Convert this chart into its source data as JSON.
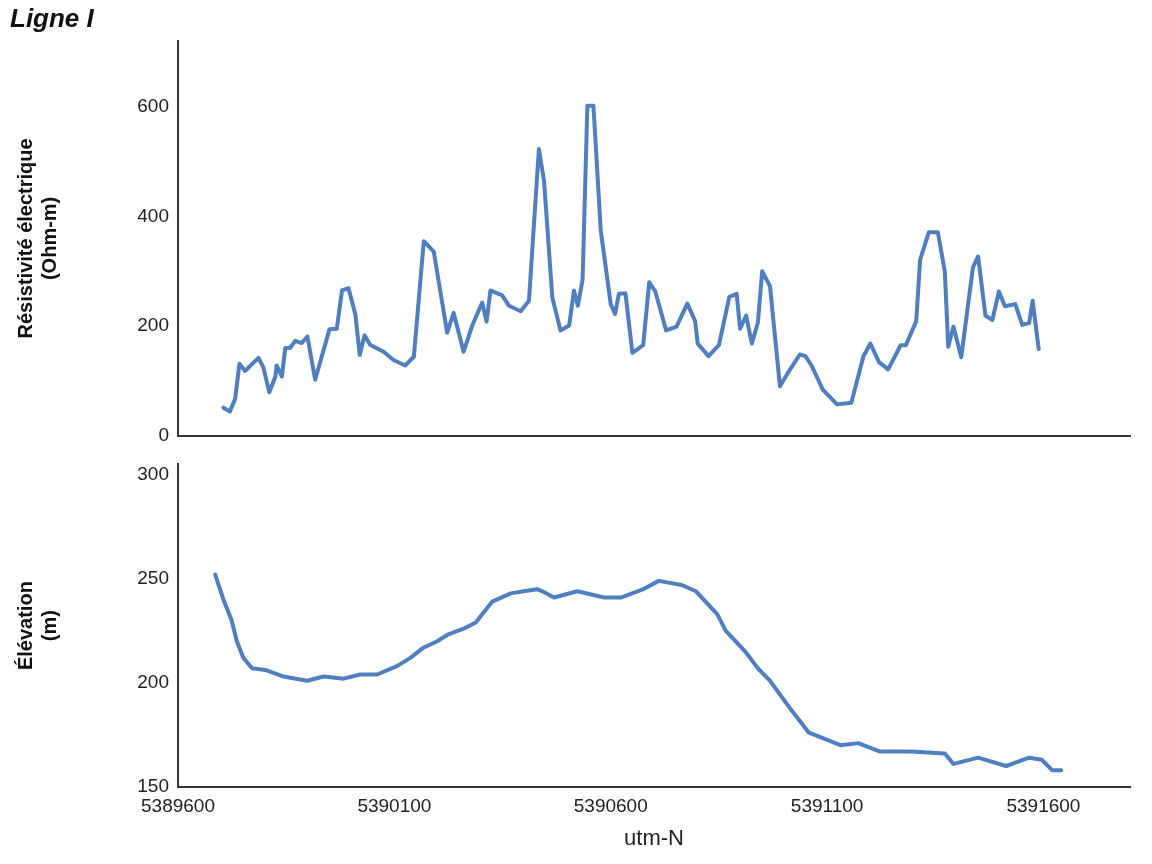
{
  "chart_data": [
    {
      "type": "line",
      "title": "Ligne I",
      "ylabel": "Résistivité électrique (Ohm-m)",
      "xlim": [
        5389600,
        5391800
      ],
      "xticks": [
        5389600,
        5390100,
        5390600,
        5391100,
        5391600
      ],
      "ylim": [
        0,
        720
      ],
      "yticks": [
        0,
        200,
        400,
        600
      ],
      "tick_labels": "y",
      "grid": false,
      "legend": false,
      "marker": "none",
      "line_style": "solid",
      "series": [
        {
          "color": "#4f7fbf",
          "x": [
            5389705,
            5389720,
            5389732,
            5389742,
            5389755,
            5389786,
            5389797,
            5389811,
            5389825,
            5389828,
            5389840,
            5389848,
            5389859,
            5389871,
            5389886,
            5389899,
            5389917,
            5389950,
            5389967,
            5389979,
            5389994,
            5390010,
            5390020,
            5390031,
            5390044,
            5390075,
            5390098,
            5390125,
            5390145,
            5390168,
            5390191,
            5390222,
            5390237,
            5390260,
            5390280,
            5390303,
            5390313,
            5390322,
            5390349,
            5390365,
            5390392,
            5390411,
            5390434,
            5390446,
            5390465,
            5390484,
            5390504,
            5390515,
            5390524,
            5390535,
            5390546,
            5390560,
            5390577,
            5390600,
            5390610,
            5390619,
            5390634,
            5390650,
            5390675,
            5390689,
            5390703,
            5390728,
            5390752,
            5390777,
            5390795,
            5390801,
            5390826,
            5390850,
            5390874,
            5390891,
            5390899,
            5390913,
            5390926,
            5390940,
            5390950,
            5390968,
            5390991,
            5391009,
            5391037,
            5391050,
            5391064,
            5391090,
            5391123,
            5391156,
            5391184,
            5391200,
            5391220,
            5391241,
            5391270,
            5391282,
            5391306,
            5391315,
            5391335,
            5391356,
            5391372,
            5391380,
            5391392,
            5391410,
            5391437,
            5391449,
            5391466,
            5391482,
            5391497,
            5391511,
            5391535,
            5391551,
            5391567,
            5391575,
            5391589
          ],
          "values": [
            51,
            44,
            67,
            131,
            118,
            142,
            125,
            79,
            108,
            128,
            108,
            160,
            160,
            173,
            169,
            181,
            102,
            194,
            195,
            265,
            269,
            221,
            147,
            183,
            166,
            153,
            138,
            128,
            144,
            355,
            336,
            188,
            224,
            153,
            201,
            243,
            208,
            265,
            256,
            237,
            227,
            246,
            523,
            464,
            252,
            192,
            201,
            265,
            237,
            285,
            602,
            602,
            374,
            240,
            222,
            259,
            260,
            151,
            165,
            280,
            263,
            192,
            199,
            241,
            209,
            168,
            145,
            165,
            253,
            259,
            195,
            219,
            168,
            206,
            300,
            273,
            90,
            114,
            148,
            145,
            128,
            84,
            57,
            60,
            145,
            168,
            134,
            121,
            165,
            165,
            209,
            321,
            371,
            371,
            300,
            162,
            199,
            143,
            307,
            327,
            219,
            211,
            263,
            236,
            240,
            202,
            206,
            246,
            158
          ]
        }
      ]
    },
    {
      "type": "line",
      "xlabel": "utm-N",
      "ylabel": "Élévation (m)",
      "xlim": [
        5389600,
        5391800
      ],
      "xticks": [
        5389600,
        5390100,
        5390600,
        5391100,
        5391600
      ],
      "ylim": [
        150,
        305
      ],
      "yticks": [
        150,
        200,
        250,
        300
      ],
      "grid": false,
      "legend": false,
      "marker": "none",
      "line_style": "solid",
      "series": [
        {
          "color": "#4f7fbf",
          "x": [
            5389686,
            5389705,
            5389724,
            5389736,
            5389751,
            5389771,
            5389805,
            5389844,
            5389898,
            5389937,
            5389983,
            5390021,
            5390060,
            5390106,
            5390137,
            5390168,
            5390199,
            5390222,
            5390260,
            5390288,
            5390303,
            5390326,
            5390369,
            5390399,
            5390430,
            5390442,
            5390469,
            5390523,
            5390585,
            5390623,
            5390662,
            5390675,
            5390711,
            5390764,
            5390797,
            5390846,
            5390866,
            5390911,
            5390940,
            5390968,
            5391017,
            5391058,
            5391131,
            5391172,
            5391221,
            5391294,
            5391372,
            5391392,
            5391449,
            5391514,
            5391567,
            5391596,
            5391620,
            5391641
          ],
          "values": [
            252,
            240,
            230,
            220,
            212,
            207,
            206,
            203,
            201,
            203,
            202,
            204,
            204,
            208,
            212,
            217,
            220,
            223,
            226,
            229,
            233,
            239,
            243,
            244,
            245,
            244,
            241,
            244,
            241,
            241,
            244,
            245,
            249,
            247,
            244,
            233,
            225,
            215,
            207,
            201,
            187,
            176,
            170,
            171,
            167,
            167,
            166,
            161,
            164,
            160,
            164,
            163,
            158,
            158
          ]
        }
      ]
    }
  ]
}
